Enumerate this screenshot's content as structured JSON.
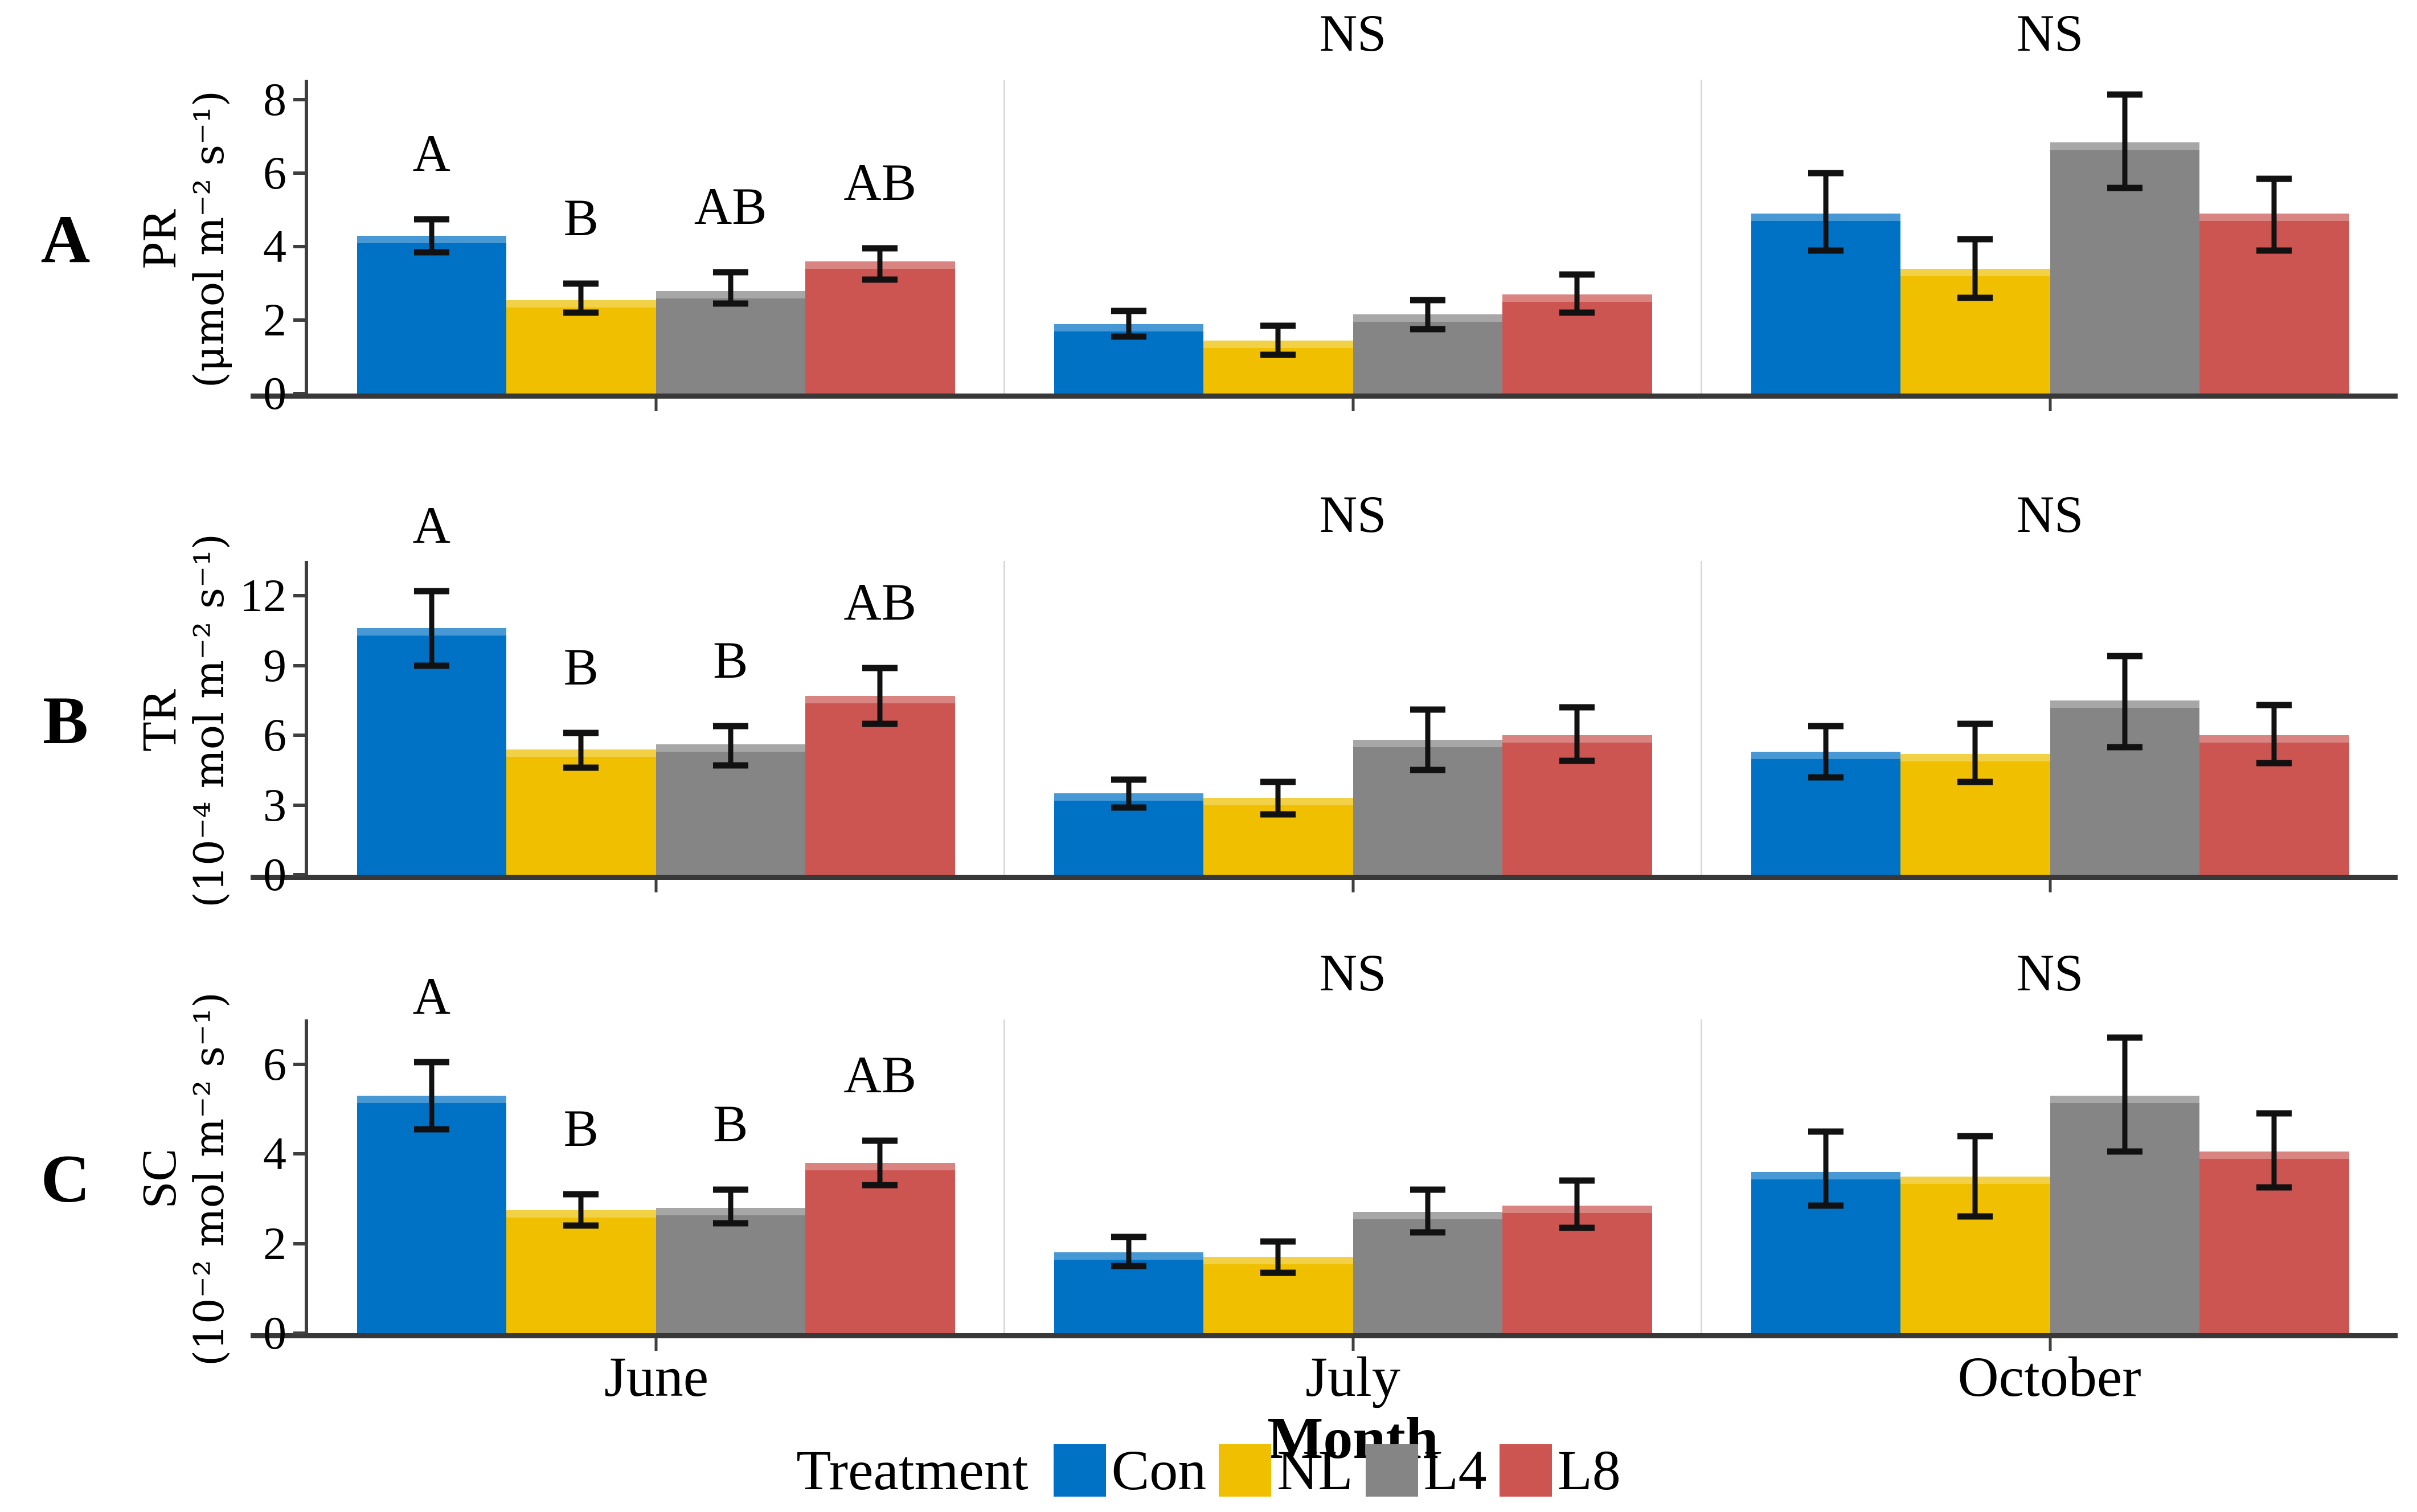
{
  "figure_type": "grouped bar chart, 3 rows x 3 month panels with error bars",
  "labels": {
    "ns": "NS"
  },
  "x_axis": {
    "title": "Month",
    "categories": [
      "June",
      "July",
      "October"
    ]
  },
  "legend": {
    "title": "Treatment",
    "items": [
      {
        "label": "Con",
        "color": "#0072C6"
      },
      {
        "label": "NL",
        "color": "#EFBF00"
      },
      {
        "label": "L4",
        "color": "#858585"
      },
      {
        "label": "L8",
        "color": "#CC5551"
      }
    ]
  },
  "colors": {
    "axis": "#3f3f3f",
    "separator": "#d9d9d9",
    "error": "#111111",
    "Con": "#0072C6",
    "NL": "#EFBF00",
    "L4": "#858585",
    "L8": "#CC5551"
  },
  "chart_data": [
    {
      "type": "bar",
      "panel_label": "A",
      "measure": "PR",
      "unit": "(μmol m⁻² s⁻¹)",
      "ylim": [
        0,
        8.55
      ],
      "yticks": [
        0,
        2,
        4,
        6,
        8
      ],
      "categories": [
        "June",
        "July",
        "October"
      ],
      "series": [
        {
          "name": "Con",
          "values": [
            4.3,
            1.9,
            4.9
          ],
          "err_low": [
            3.85,
            1.55,
            3.9
          ],
          "err_high": [
            4.75,
            2.25,
            6.0
          ]
        },
        {
          "name": "NL",
          "values": [
            2.55,
            1.45,
            3.4
          ],
          "err_low": [
            2.2,
            1.05,
            2.6
          ],
          "err_high": [
            3.0,
            1.85,
            4.2
          ]
        },
        {
          "name": "L4",
          "values": [
            2.8,
            2.15,
            6.85
          ],
          "err_low": [
            2.45,
            1.75,
            5.6
          ],
          "err_high": [
            3.3,
            2.55,
            8.15
          ]
        },
        {
          "name": "L8",
          "values": [
            3.6,
            2.7,
            4.9
          ],
          "err_low": [
            3.1,
            2.2,
            3.9
          ],
          "err_high": [
            3.95,
            3.25,
            5.85
          ]
        }
      ],
      "sig_letters": {
        "June": [
          "A",
          "B",
          "AB",
          "AB"
        ]
      },
      "ns_categories": [
        "July",
        "October"
      ]
    },
    {
      "type": "bar",
      "panel_label": "B",
      "measure": "TR",
      "unit": "(10⁻⁴ mol m⁻² s⁻¹)",
      "ylim": [
        0,
        13.5
      ],
      "yticks": [
        0,
        3,
        6,
        9,
        12
      ],
      "categories": [
        "June",
        "July",
        "October"
      ],
      "series": [
        {
          "name": "Con",
          "values": [
            10.6,
            3.5,
            5.3
          ],
          "err_low": [
            9.0,
            2.9,
            4.2
          ],
          "err_high": [
            12.2,
            4.1,
            6.4
          ]
        },
        {
          "name": "NL",
          "values": [
            5.4,
            3.3,
            5.2
          ],
          "err_low": [
            4.6,
            2.6,
            4.0
          ],
          "err_high": [
            6.1,
            4.0,
            6.5
          ]
        },
        {
          "name": "L4",
          "values": [
            5.6,
            5.8,
            7.5
          ],
          "err_low": [
            4.7,
            4.5,
            5.5
          ],
          "err_high": [
            6.4,
            7.1,
            9.4
          ]
        },
        {
          "name": "L8",
          "values": [
            7.7,
            6.0,
            6.0
          ],
          "err_low": [
            6.5,
            4.9,
            4.8
          ],
          "err_high": [
            8.9,
            7.2,
            7.3
          ]
        }
      ],
      "sig_letters": {
        "June": [
          "A",
          "B",
          "B",
          "AB"
        ]
      },
      "ns_categories": [
        "July",
        "October"
      ]
    },
    {
      "type": "bar",
      "panel_label": "C",
      "measure": "SC",
      "unit": "(10⁻² mol m⁻² s⁻¹)",
      "ylim": [
        0,
        7.0
      ],
      "yticks": [
        0,
        2,
        4,
        6
      ],
      "categories": [
        "June",
        "July",
        "October"
      ],
      "series": [
        {
          "name": "Con",
          "values": [
            5.3,
            1.8,
            3.6
          ],
          "err_low": [
            4.55,
            1.5,
            2.85
          ],
          "err_high": [
            6.05,
            2.15,
            4.5
          ]
        },
        {
          "name": "NL",
          "values": [
            2.75,
            1.7,
            3.5
          ],
          "err_low": [
            2.4,
            1.35,
            2.6
          ],
          "err_high": [
            3.1,
            2.05,
            4.4
          ]
        },
        {
          "name": "L4",
          "values": [
            2.8,
            2.7,
            5.3
          ],
          "err_low": [
            2.45,
            2.25,
            4.05
          ],
          "err_high": [
            3.2,
            3.2,
            6.6
          ]
        },
        {
          "name": "L8",
          "values": [
            3.8,
            2.85,
            4.05
          ],
          "err_low": [
            3.3,
            2.35,
            3.25
          ],
          "err_high": [
            4.3,
            3.4,
            4.9
          ]
        }
      ],
      "sig_letters": {
        "June": [
          "A",
          "B",
          "B",
          "AB"
        ]
      },
      "ns_categories": [
        "July",
        "October"
      ]
    }
  ]
}
